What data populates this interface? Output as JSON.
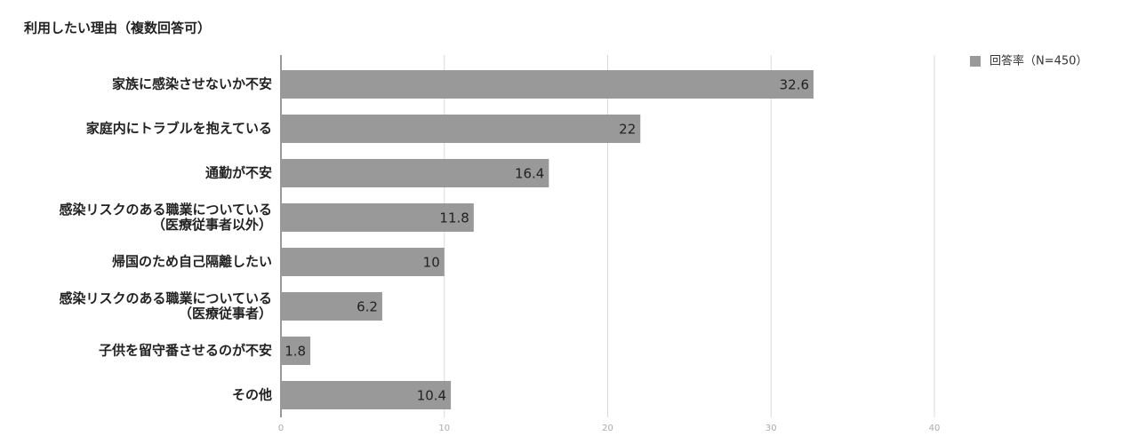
{
  "chart_data": {
    "type": "bar",
    "orientation": "horizontal",
    "title": "利用したい理由（複数回答可）",
    "categories": [
      "家族に感染させないか不安",
      "家庭内にトラブルを抱えている",
      "通勤が不安",
      "感染リスクのある職業についている\n（医療従事者以外）",
      "帰国のため自己隔離したい",
      "感染リスクのある職業についている\n（医療従事者）",
      "子供を留守番させるのが不安",
      "その他"
    ],
    "series": [
      {
        "name": "回答率（N=450）",
        "color": "#999999",
        "values": [
          32.6,
          22,
          16.4,
          11.8,
          10,
          6.2,
          1.8,
          10.4
        ]
      }
    ],
    "xlim": [
      0,
      40
    ],
    "xticks": [
      0,
      10,
      20,
      30,
      40
    ],
    "grid": true,
    "legend": "top-right"
  }
}
